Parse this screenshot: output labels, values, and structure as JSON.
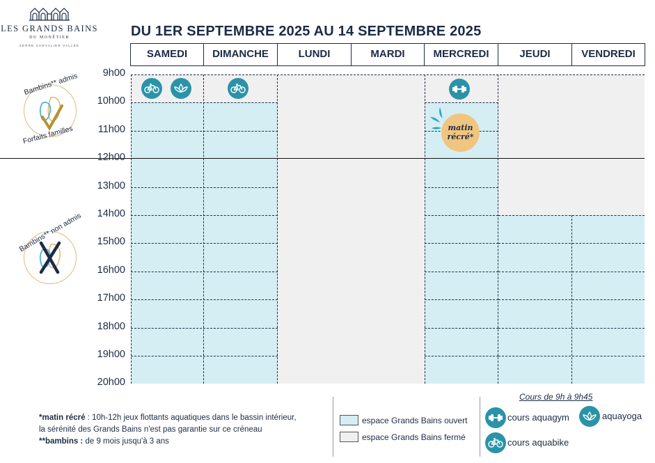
{
  "logo": {
    "name": "LES GRANDS BAINS",
    "sub": "DU MONÊTIER",
    "sub2": "SERRE CHEVALIER VALLÉE"
  },
  "title": "DU 1ER SEPTEMBRE 2025 AU 14 SEPTEMBRE 2025",
  "days": [
    "SAMEDI",
    "DIMANCHE",
    "LUNDI",
    "MARDI",
    "MERCREDI",
    "JEUDI",
    "VENDREDI"
  ],
  "hours": [
    "9h00",
    "10h00",
    "11h00",
    "12h00",
    "13h00",
    "14h00",
    "15h00",
    "16h00",
    "17h00",
    "18h00",
    "19h00",
    "20h00"
  ],
  "schedule": [
    {
      "day": "SAMEDI",
      "open_from": "10h00",
      "open_to": "20h00",
      "cours": [
        "aquabike",
        "aquayoga"
      ]
    },
    {
      "day": "DIMANCHE",
      "open_from": "10h00",
      "open_to": "20h00",
      "cours": [
        "aquabike"
      ]
    },
    {
      "day": "LUNDI",
      "open_from": null,
      "open_to": null,
      "cours": []
    },
    {
      "day": "MARDI",
      "open_from": null,
      "open_to": null,
      "cours": []
    },
    {
      "day": "MERCREDI",
      "open_from": "10h00",
      "open_to": "20h00",
      "cours": [
        "aquagym"
      ],
      "matin_recre": "10h00-12h00"
    },
    {
      "day": "JEUDI",
      "open_from": "14h00",
      "open_to": "20h00",
      "cours": []
    },
    {
      "day": "VENDREDI",
      "open_from": "14h00",
      "open_to": "20h00",
      "cours": []
    }
  ],
  "recre_label": {
    "line1": "matin",
    "line2": "récré*"
  },
  "badges": {
    "admis": {
      "top": "Bambins** admis",
      "bottom": "Forfaits familles"
    },
    "non_admis": {
      "top": "Bambins** non admis"
    }
  },
  "notes": {
    "recre_key": "*matin récré",
    "recre_text": " : 10h-12h jeux flottants aquatiques dans le bassin intérieur,",
    "recre_text2": "la sérénité des Grands Bains n'est pas garantie sur ce créneau",
    "bambins_key": "**bambins :",
    "bambins_text": " de 9 mois jusqu'à 3 ans"
  },
  "legend": {
    "open": "espace Grands Bains ouvert",
    "closed": "espace Grands Bains fermé"
  },
  "cours": {
    "title": "Cours de 9h à 9h45",
    "aquagym": "cours aquagym",
    "aquayoga": "aquayoga",
    "aquabike": "cours aquabike"
  },
  "colors": {
    "navy": "#1d2b45",
    "open": "#d5eef3",
    "closed": "#f0f0f0",
    "icon": "#2a93a8",
    "recre": "#f0c57f",
    "badge_border": "#e6b97a"
  }
}
